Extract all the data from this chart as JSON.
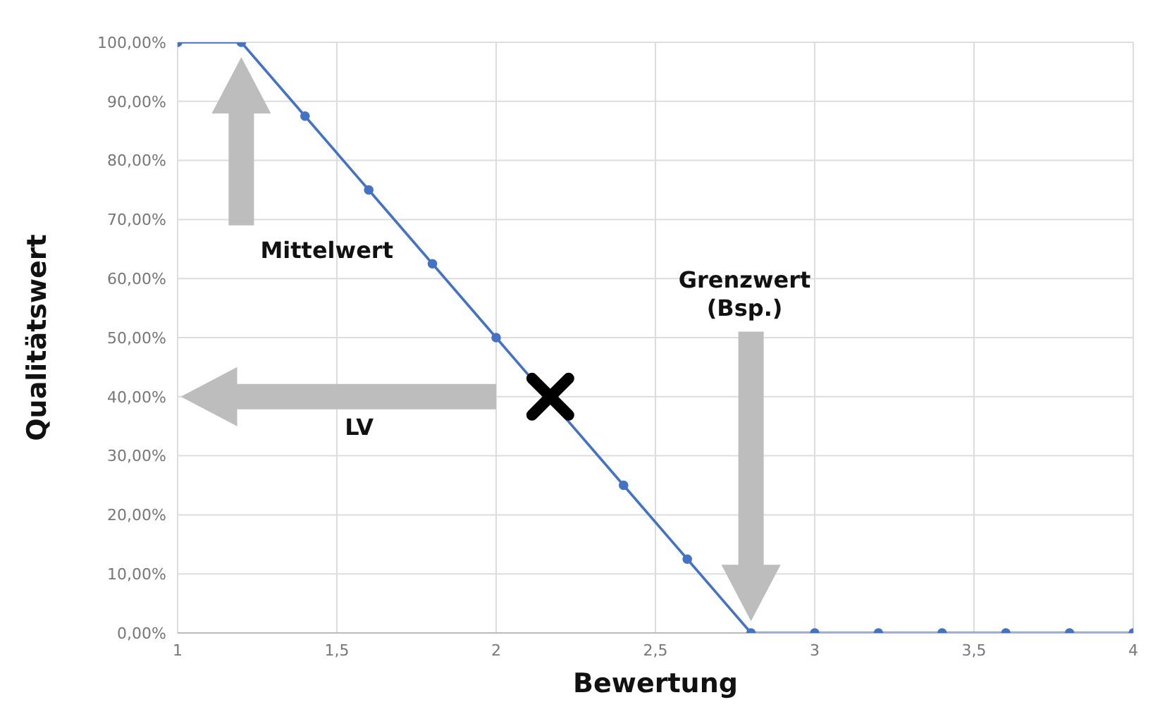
{
  "chart_data": {
    "type": "line",
    "xlabel": "Bewertung",
    "ylabel": "Qualitätswert",
    "series": [
      {
        "color": "#4472c4",
        "marker": "circle",
        "x": [
          1,
          1.2,
          1.4,
          1.6,
          1.8,
          2,
          2.2,
          2.4,
          2.6,
          2.8,
          3,
          3.2,
          3.4,
          3.6,
          3.8,
          4
        ],
        "values": [
          100,
          100,
          87.5,
          75,
          62.5,
          50,
          null,
          25,
          12.5,
          0,
          0,
          0,
          0,
          0,
          0,
          0
        ]
      },
      {
        "type": "scatter",
        "color": "#000000",
        "marker": "cross",
        "x": [
          2.17
        ],
        "values": [
          40
        ]
      }
    ],
    "xlim": [
      1,
      4
    ],
    "xticks": [
      1,
      {
        "value": 1.5,
        "label": "1,5"
      },
      2,
      {
        "value": 2.5,
        "label": "2,5"
      },
      3,
      {
        "value": 3.5,
        "label": "3,5"
      },
      4
    ],
    "ylim": [
      0,
      100
    ],
    "yticks": [
      {
        "value": 0,
        "label": "0,00%"
      },
      {
        "value": 10,
        "label": "10,00%"
      },
      {
        "value": 20,
        "label": "20,00%"
      },
      {
        "value": 30,
        "label": "30,00%"
      },
      {
        "value": 40,
        "label": "40,00%"
      },
      {
        "value": 50,
        "label": "50,00%"
      },
      {
        "value": 60,
        "label": "60,00%"
      },
      {
        "value": 70,
        "label": "70,00%"
      },
      {
        "value": 80,
        "label": "80,00%"
      },
      {
        "value": 90,
        "label": "90,00%"
      },
      {
        "value": 100,
        "label": "100,00%"
      }
    ],
    "grid": true,
    "legend": false,
    "annotations": [
      "Mittelwert",
      "LV",
      "Grenzwert\n(Bsp.)"
    ]
  }
}
